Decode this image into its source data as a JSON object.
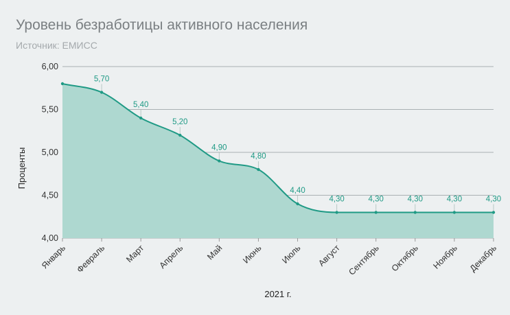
{
  "header": {
    "title": "Уровень безработицы активного населения",
    "subtitle": "Источник: ЕМИСС"
  },
  "chart_data": {
    "type": "area",
    "title": "Уровень безработицы активного населения",
    "subtitle": "Источник: ЕМИСС",
    "xlabel": "2021 г.",
    "ylabel": "Проценты",
    "categories": [
      "Январь",
      "Февраль",
      "Март",
      "Апрель",
      "Май",
      "Июнь",
      "Июль",
      "Август",
      "Сентябрь",
      "Октябрь",
      "Ноябрь",
      "Декабрь"
    ],
    "values": [
      5.8,
      5.7,
      5.4,
      5.2,
      4.9,
      4.8,
      4.4,
      4.3,
      4.3,
      4.3,
      4.3,
      4.3
    ],
    "data_labels": [
      "",
      "5,70",
      "5,40",
      "5,20",
      "4,90",
      "4,80",
      "4,40",
      "4,30",
      "4,30",
      "4,30",
      "4,30",
      "4,30"
    ],
    "yticks": [
      "4,00",
      "4,50",
      "5,00",
      "5,50",
      "6,00"
    ],
    "ytick_values": [
      4.0,
      4.5,
      5.0,
      5.5,
      6.0
    ],
    "ylim": [
      4.0,
      6.0
    ],
    "grid": true,
    "legend": "none",
    "colors": {
      "line": "#1f9a85",
      "fill": "#aed8d0",
      "label": "#1f9a85",
      "grid": "#a9b0b3"
    }
  }
}
